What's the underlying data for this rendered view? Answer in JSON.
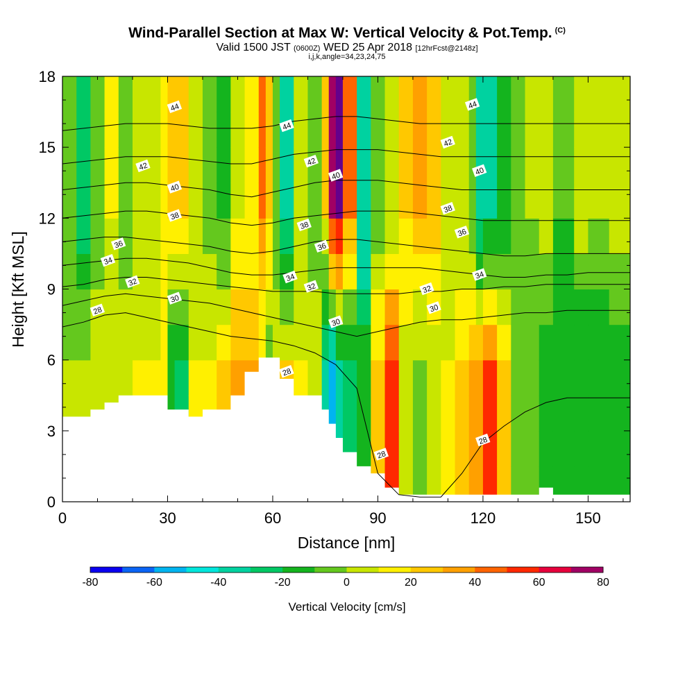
{
  "title": {
    "main": "Wind-Parallel Section at Max W: Vertical Velocity & Pot.Temp.",
    "main_unit": "(C)",
    "valid_prefix": "Valid 1500 JST",
    "valid_utc": "(0600Z)",
    "valid_date": "WED 25 Apr 2018",
    "forecast": "[12hrFcst@2148z]",
    "grid_info": "i,j,k,angle=34,23,24,75"
  },
  "chart_data": {
    "type": "heatmap",
    "xlabel": "Distance [nm]",
    "ylabel": "Height [Kft MSL]",
    "xlim": [
      0,
      162
    ],
    "ylim": [
      0,
      18
    ],
    "x_ticks": [
      0,
      30,
      60,
      90,
      120,
      150
    ],
    "y_ticks": [
      0,
      3,
      6,
      9,
      12,
      15,
      18
    ],
    "colorbar": {
      "label": "Vertical Velocity [cm/s]",
      "ticks": [
        -80,
        -60,
        -40,
        -20,
        0,
        20,
        40,
        60,
        80
      ],
      "bins": [
        -80,
        -70,
        -60,
        -50,
        -40,
        -30,
        -20,
        -10,
        0,
        10,
        20,
        30,
        40,
        50,
        60,
        70,
        80
      ],
      "colors": [
        "#0a00f0",
        "#0a64f5",
        "#00b4f0",
        "#00e6dc",
        "#00d2a0",
        "#00c864",
        "#14b41e",
        "#64c81e",
        "#c8e600",
        "#fff000",
        "#ffc800",
        "#ffa000",
        "#ff6400",
        "#ff2800",
        "#e6003c",
        "#a00064",
        "#64008c"
      ]
    },
    "vertical_velocity_columns": {
      "description_units": "cm/s",
      "x": [
        0,
        4,
        8,
        12,
        16,
        20,
        24,
        28,
        30,
        32,
        36,
        40,
        44,
        48,
        52,
        56,
        58,
        60,
        62,
        66,
        70,
        74,
        76,
        78,
        80,
        84,
        88,
        92,
        96,
        100,
        104,
        108,
        112,
        116,
        118,
        120,
        124,
        128,
        132,
        136,
        140,
        146,
        150,
        156,
        162
      ],
      "upper_w": [
        -10,
        -25,
        -5,
        10,
        -5,
        5,
        0,
        10,
        25,
        20,
        5,
        -5,
        -15,
        5,
        10,
        40,
        20,
        -10,
        -35,
        0,
        -5,
        20,
        70,
        80,
        40,
        -40,
        -5,
        0,
        20,
        30,
        25,
        5,
        0,
        -10,
        -40,
        -35,
        -20,
        -5,
        0,
        5,
        -10,
        5,
        0,
        5,
        0
      ],
      "lower_w": [
        0,
        0,
        5,
        5,
        5,
        10,
        10,
        15,
        -20,
        -25,
        10,
        10,
        20,
        35,
        30,
        5,
        -5,
        10,
        20,
        10,
        5,
        -40,
        -55,
        -40,
        -30,
        -15,
        20,
        50,
        5,
        -5,
        5,
        10,
        20,
        30,
        35,
        50,
        20,
        -5,
        -10,
        -15,
        -15,
        -20,
        -20,
        -15,
        -10
      ]
    },
    "terrain_height_kft": [
      3.6,
      3.6,
      3.9,
      4.2,
      4.5,
      4.5,
      4.5,
      4.5,
      3.9,
      3.9,
      3.6,
      3.9,
      3.9,
      4.5,
      5.5,
      6.1,
      6.1,
      6.1,
      5.2,
      4.5,
      4.5,
      3.9,
      3.3,
      2.7,
      2.1,
      1.5,
      1.2,
      0.6,
      0.3,
      0.3,
      0.3,
      0.3,
      0.3,
      0.3,
      0.3,
      0.3,
      0.3,
      0.3,
      0.3,
      0.6,
      0.3,
      0.3,
      0.3,
      0.3,
      0.3
    ],
    "isentropes": [
      {
        "label": "28",
        "y_kft": [
          7.4,
          7.6,
          7.9,
          8.0,
          7.8,
          7.6,
          7.4,
          7.2,
          7.0,
          6.9,
          6.8,
          6.6,
          6.3,
          5.8,
          4.8,
          1.2,
          0.3,
          0.2,
          0.2,
          1.2,
          2.5,
          3.2,
          3.8,
          4.2,
          4.4,
          4.4,
          4.4
        ]
      },
      {
        "label": "30",
        "y_kft": [
          8.3,
          8.5,
          8.7,
          8.8,
          8.7,
          8.6,
          8.5,
          8.4,
          8.2,
          8.0,
          7.8,
          7.6,
          7.4,
          7.2,
          7.0,
          7.2,
          7.4,
          7.6,
          7.7,
          7.7,
          7.8,
          7.9,
          8.0,
          8.0,
          8.1,
          8.1,
          8.1
        ]
      },
      {
        "label": "32",
        "y_kft": [
          9.1,
          9.2,
          9.4,
          9.5,
          9.5,
          9.4,
          9.3,
          9.2,
          9.1,
          9.0,
          8.9,
          8.9,
          8.9,
          8.8,
          8.8,
          8.8,
          8.8,
          8.9,
          8.9,
          9.0,
          9.0,
          9.1,
          9.1,
          9.2,
          9.2,
          9.2,
          9.2
        ]
      },
      {
        "label": "34",
        "y_kft": [
          10.0,
          10.1,
          10.2,
          10.3,
          10.3,
          10.2,
          10.1,
          9.9,
          9.7,
          9.6,
          9.6,
          9.7,
          9.8,
          9.9,
          9.9,
          9.9,
          9.9,
          9.9,
          9.8,
          9.7,
          9.6,
          9.5,
          9.5,
          9.6,
          9.6,
          9.7,
          9.7
        ]
      },
      {
        "label": "36",
        "y_kft": [
          11.0,
          11.1,
          11.2,
          11.2,
          11.1,
          11.0,
          10.9,
          10.8,
          10.6,
          10.5,
          10.6,
          10.8,
          11.0,
          11.1,
          11.1,
          11.0,
          10.9,
          10.8,
          10.7,
          10.6,
          10.5,
          10.4,
          10.4,
          10.5,
          10.5,
          10.5,
          10.5
        ]
      },
      {
        "label": "38",
        "y_kft": [
          12.0,
          12.1,
          12.2,
          12.3,
          12.3,
          12.2,
          12.1,
          12.0,
          11.8,
          11.7,
          11.8,
          12.0,
          12.1,
          12.2,
          12.3,
          12.3,
          12.3,
          12.2,
          12.1,
          12.0,
          11.9,
          11.9,
          11.9,
          11.9,
          11.9,
          11.9,
          11.9
        ]
      },
      {
        "label": "40",
        "y_kft": [
          13.2,
          13.3,
          13.4,
          13.5,
          13.5,
          13.4,
          13.3,
          13.2,
          13.0,
          12.9,
          13.1,
          13.3,
          13.5,
          13.6,
          13.6,
          13.6,
          13.5,
          13.4,
          13.3,
          13.2,
          13.2,
          13.2,
          13.2,
          13.2,
          13.2,
          13.2,
          13.2
        ]
      },
      {
        "label": "42",
        "y_kft": [
          14.3,
          14.4,
          14.5,
          14.6,
          14.6,
          14.6,
          14.5,
          14.4,
          14.3,
          14.3,
          14.5,
          14.7,
          14.8,
          14.9,
          14.9,
          14.9,
          14.8,
          14.7,
          14.6,
          14.6,
          14.6,
          14.6,
          14.6,
          14.6,
          14.6,
          14.6,
          14.6
        ]
      },
      {
        "label": "44",
        "y_kft": [
          15.7,
          15.8,
          15.9,
          16.0,
          16.0,
          16.0,
          15.9,
          15.8,
          15.8,
          15.8,
          15.9,
          16.1,
          16.2,
          16.3,
          16.3,
          16.2,
          16.1,
          16.0,
          16.0,
          16.0,
          16.0,
          16.0,
          16.0,
          16.0,
          16.0,
          16.0,
          16.0
        ]
      }
    ],
    "isentrope_x": [
      0,
      6,
      12,
      18,
      24,
      30,
      36,
      42,
      48,
      54,
      60,
      66,
      72,
      78,
      84,
      90,
      96,
      102,
      108,
      114,
      120,
      126,
      132,
      138,
      144,
      150,
      162
    ],
    "contour_labels": [
      {
        "text": "44",
        "x": 32,
        "y": 16.7
      },
      {
        "text": "44",
        "x": 64,
        "y": 15.9
      },
      {
        "text": "44",
        "x": 117,
        "y": 16.8
      },
      {
        "text": "42",
        "x": 23,
        "y": 14.2
      },
      {
        "text": "42",
        "x": 71,
        "y": 14.4
      },
      {
        "text": "42",
        "x": 110,
        "y": 15.2
      },
      {
        "text": "40",
        "x": 32,
        "y": 13.3
      },
      {
        "text": "40",
        "x": 78,
        "y": 13.8
      },
      {
        "text": "40",
        "x": 119,
        "y": 14.0
      },
      {
        "text": "38",
        "x": 32,
        "y": 12.1
      },
      {
        "text": "38",
        "x": 69,
        "y": 11.7
      },
      {
        "text": "38",
        "x": 110,
        "y": 12.4
      },
      {
        "text": "36",
        "x": 16,
        "y": 10.9
      },
      {
        "text": "36",
        "x": 74,
        "y": 10.8
      },
      {
        "text": "36",
        "x": 114,
        "y": 11.4
      },
      {
        "text": "34",
        "x": 13,
        "y": 10.2
      },
      {
        "text": "34",
        "x": 65,
        "y": 9.5
      },
      {
        "text": "34",
        "x": 119,
        "y": 9.6
      },
      {
        "text": "32",
        "x": 20,
        "y": 9.3
      },
      {
        "text": "32",
        "x": 71,
        "y": 9.1
      },
      {
        "text": "32",
        "x": 104,
        "y": 9.0
      },
      {
        "text": "30",
        "x": 32,
        "y": 8.6
      },
      {
        "text": "30",
        "x": 78,
        "y": 7.6
      },
      {
        "text": "30",
        "x": 106,
        "y": 8.2
      },
      {
        "text": "28",
        "x": 10,
        "y": 8.1
      },
      {
        "text": "28",
        "x": 64,
        "y": 5.5
      },
      {
        "text": "28",
        "x": 91,
        "y": 2.0
      },
      {
        "text": "28",
        "x": 120,
        "y": 2.6
      }
    ]
  }
}
